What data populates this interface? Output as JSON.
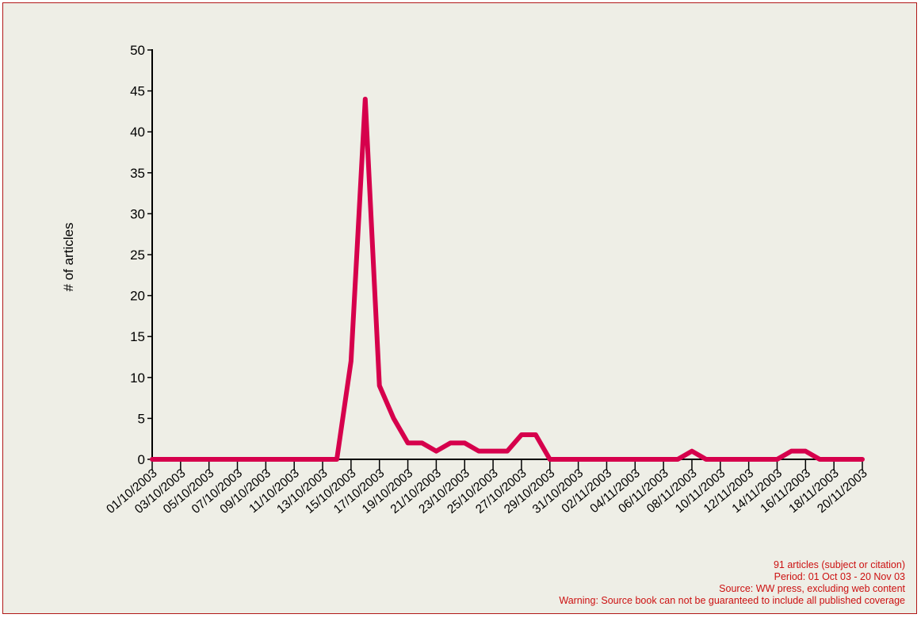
{
  "chart_data": {
    "type": "line",
    "ylabel": "# of articles",
    "xlabel": "",
    "ylim": [
      0,
      50
    ],
    "yticks": [
      0,
      5,
      10,
      15,
      20,
      25,
      30,
      35,
      40,
      45,
      50
    ],
    "x": [
      "01/10/2003",
      "02/10/2003",
      "03/10/2003",
      "04/10/2003",
      "05/10/2003",
      "06/10/2003",
      "07/10/2003",
      "08/10/2003",
      "09/10/2003",
      "10/10/2003",
      "11/10/2003",
      "12/10/2003",
      "13/10/2003",
      "14/10/2003",
      "15/10/2003",
      "16/10/2003",
      "17/10/2003",
      "18/10/2003",
      "19/10/2003",
      "20/10/2003",
      "21/10/2003",
      "22/10/2003",
      "23/10/2003",
      "24/10/2003",
      "25/10/2003",
      "26/10/2003",
      "27/10/2003",
      "28/10/2003",
      "29/10/2003",
      "30/10/2003",
      "31/10/2003",
      "01/11/2003",
      "02/11/2003",
      "03/11/2003",
      "04/11/2003",
      "05/11/2003",
      "06/11/2003",
      "07/11/2003",
      "08/11/2003",
      "09/11/2003",
      "10/11/2003",
      "11/11/2003",
      "12/11/2003",
      "13/11/2003",
      "14/11/2003",
      "15/11/2003",
      "16/11/2003",
      "17/11/2003",
      "18/11/2003",
      "19/11/2003",
      "20/11/2003"
    ],
    "xtick_labels": [
      "01/10/2003",
      "03/10/2003",
      "05/10/2003",
      "07/10/2003",
      "09/10/2003",
      "11/10/2003",
      "13/10/2003",
      "15/10/2003",
      "17/10/2003",
      "19/10/2003",
      "21/10/2003",
      "23/10/2003",
      "25/10/2003",
      "27/10/2003",
      "29/10/2003",
      "31/10/2003",
      "02/11/2003",
      "04/11/2003",
      "06/11/2003",
      "08/11/2003",
      "10/11/2003",
      "12/11/2003",
      "14/11/2003",
      "16/11/2003",
      "18/11/2003",
      "20/11/2003"
    ],
    "series": [
      {
        "values": [
          0,
          0,
          0,
          0,
          0,
          0,
          0,
          0,
          0,
          0,
          0,
          0,
          0,
          0,
          12,
          44,
          9,
          5,
          2,
          2,
          1,
          2,
          2,
          1,
          1,
          1,
          3,
          3,
          0,
          0,
          0,
          0,
          0,
          0,
          0,
          0,
          0,
          0,
          1,
          0,
          0,
          0,
          0,
          0,
          0,
          1,
          1,
          0,
          0,
          0,
          0
        ],
        "color": "#d6004c"
      }
    ],
    "grid": false,
    "legend": "none"
  },
  "notes": [
    "91 articles (subject or citation)",
    "Period: 01 Oct 03 - 20 Nov 03",
    "Source: WW press, excluding web content",
    "Warning: Source book can not be guaranteed to include all published coverage"
  ],
  "colors": {
    "background": "#eeeee6",
    "border": "#b11818",
    "line": "#d6004c",
    "note_text": "#cc1111",
    "axis_text": "#000000"
  }
}
